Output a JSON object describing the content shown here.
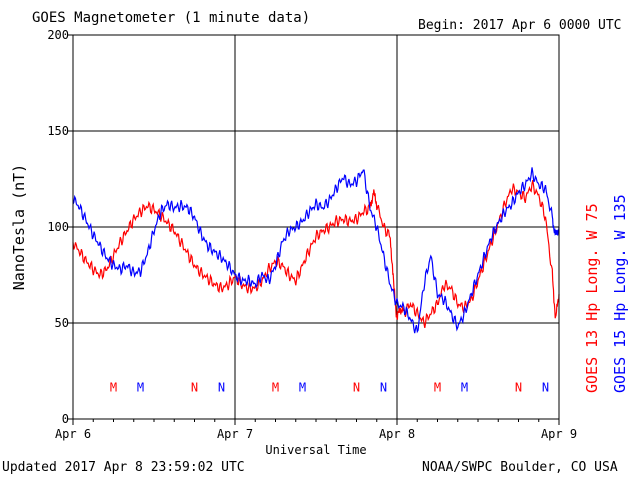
{
  "header": {
    "title": "GOES Magnetometer (1 minute data)",
    "begin": "Begin:  2017 Apr 6 0000 UTC"
  },
  "footer": {
    "updated": "Updated 2017 Apr  8 23:59:02 UTC",
    "source": "NOAA/SWPC Boulder, CO USA"
  },
  "chart_data": {
    "type": "line",
    "title": "GOES Magnetometer (1 minute data)",
    "xlabel": "Universal Time",
    "ylabel": "NanoTesla (nT)",
    "xlim": [
      0,
      72
    ],
    "ylim": [
      0,
      200
    ],
    "y_ticks": [
      0,
      50,
      100,
      150,
      200
    ],
    "x_ticks": [
      {
        "hour": 0,
        "label": "Apr 6"
      },
      {
        "hour": 24,
        "label": "Apr 7"
      },
      {
        "hour": 48,
        "label": "Apr 8"
      },
      {
        "hour": 72,
        "label": "Apr 9"
      }
    ],
    "grid": true,
    "legend": "right-vertical",
    "series": [
      {
        "name": "GOES 13 Hp  Long. W 75",
        "color": "#ff0000",
        "points": [
          [
            0,
            92
          ],
          [
            1,
            87
          ],
          [
            2,
            82
          ],
          [
            3,
            78
          ],
          [
            4,
            75
          ],
          [
            5,
            78
          ],
          [
            6,
            85
          ],
          [
            7,
            92
          ],
          [
            8,
            98
          ],
          [
            9,
            104
          ],
          [
            10,
            108
          ],
          [
            11,
            111
          ],
          [
            12,
            109
          ],
          [
            13,
            106
          ],
          [
            14,
            102
          ],
          [
            15,
            98
          ],
          [
            16,
            92
          ],
          [
            17,
            86
          ],
          [
            18,
            80
          ],
          [
            19,
            76
          ],
          [
            20,
            73
          ],
          [
            21,
            70
          ],
          [
            22,
            68
          ],
          [
            23,
            70
          ],
          [
            24,
            74
          ],
          [
            25,
            70
          ],
          [
            26,
            68
          ],
          [
            27,
            68
          ],
          [
            28,
            72
          ],
          [
            29,
            78
          ],
          [
            30,
            82
          ],
          [
            31,
            80
          ],
          [
            32,
            75
          ],
          [
            33,
            72
          ],
          [
            34,
            80
          ],
          [
            35,
            88
          ],
          [
            36,
            95
          ],
          [
            37,
            98
          ],
          [
            38,
            100
          ],
          [
            39,
            103
          ],
          [
            40,
            104
          ],
          [
            41,
            103
          ],
          [
            42,
            104
          ],
          [
            43,
            108
          ],
          [
            44,
            110
          ],
          [
            44.5,
            118
          ],
          [
            45,
            112
          ],
          [
            46,
            100
          ],
          [
            47,
            95
          ],
          [
            47.5,
            70
          ],
          [
            48,
            52
          ],
          [
            48.5,
            58
          ],
          [
            49,
            55
          ],
          [
            50,
            60
          ],
          [
            51,
            55
          ],
          [
            52,
            50
          ],
          [
            53,
            55
          ],
          [
            54,
            60
          ],
          [
            55,
            70
          ],
          [
            56,
            68
          ],
          [
            57,
            60
          ],
          [
            58,
            58
          ],
          [
            59,
            62
          ],
          [
            60,
            72
          ],
          [
            61,
            82
          ],
          [
            62,
            92
          ],
          [
            63,
            102
          ],
          [
            64,
            112
          ],
          [
            65,
            120
          ],
          [
            66,
            118
          ],
          [
            67,
            115
          ],
          [
            68,
            122
          ],
          [
            69,
            116
          ],
          [
            70,
            105
          ],
          [
            71,
            75
          ],
          [
            71.5,
            52
          ],
          [
            72,
            65
          ]
        ]
      },
      {
        "name": "GOES 15 Hp  Long. W 135",
        "color": "#0000ff",
        "points": [
          [
            0,
            115
          ],
          [
            1,
            110
          ],
          [
            2,
            103
          ],
          [
            3,
            96
          ],
          [
            4,
            90
          ],
          [
            5,
            84
          ],
          [
            6,
            80
          ],
          [
            7,
            78
          ],
          [
            8,
            80
          ],
          [
            9,
            76
          ],
          [
            10,
            77
          ],
          [
            11,
            86
          ],
          [
            12,
            98
          ],
          [
            13,
            108
          ],
          [
            14,
            112
          ],
          [
            15,
            110
          ],
          [
            16,
            111
          ],
          [
            17,
            110
          ],
          [
            18,
            105
          ],
          [
            19,
            96
          ],
          [
            20,
            90
          ],
          [
            21,
            87
          ],
          [
            22,
            84
          ],
          [
            23,
            80
          ],
          [
            24,
            75
          ],
          [
            25,
            72
          ],
          [
            26,
            72
          ],
          [
            27,
            70
          ],
          [
            28,
            75
          ],
          [
            29,
            72
          ],
          [
            30,
            80
          ],
          [
            31,
            92
          ],
          [
            32,
            98
          ],
          [
            33,
            100
          ],
          [
            34,
            103
          ],
          [
            35,
            108
          ],
          [
            36,
            112
          ],
          [
            37,
            110
          ],
          [
            38,
            114
          ],
          [
            39,
            120
          ],
          [
            40,
            126
          ],
          [
            41,
            122
          ],
          [
            42,
            124
          ],
          [
            43,
            130
          ],
          [
            44,
            110
          ],
          [
            45,
            100
          ],
          [
            46,
            85
          ],
          [
            47,
            70
          ],
          [
            48,
            60
          ],
          [
            49,
            58
          ],
          [
            50,
            52
          ],
          [
            51,
            45
          ],
          [
            52,
            70
          ],
          [
            53,
            85
          ],
          [
            54,
            65
          ],
          [
            55,
            62
          ],
          [
            56,
            55
          ],
          [
            57,
            48
          ],
          [
            58,
            55
          ],
          [
            59,
            65
          ],
          [
            60,
            75
          ],
          [
            61,
            85
          ],
          [
            62,
            95
          ],
          [
            63,
            102
          ],
          [
            64,
            108
          ],
          [
            65,
            112
          ],
          [
            66,
            118
          ],
          [
            67,
            122
          ],
          [
            68,
            128
          ],
          [
            69,
            122
          ],
          [
            70,
            120
          ],
          [
            71,
            105
          ],
          [
            71.5,
            95
          ],
          [
            72,
            100
          ]
        ]
      }
    ],
    "markers": [
      {
        "letter": "M",
        "hour": 6,
        "color": "#ff0000"
      },
      {
        "letter": "M",
        "hour": 10,
        "color": "#0000ff"
      },
      {
        "letter": "N",
        "hour": 18,
        "color": "#ff0000"
      },
      {
        "letter": "N",
        "hour": 22,
        "color": "#0000ff"
      },
      {
        "letter": "M",
        "hour": 30,
        "color": "#ff0000"
      },
      {
        "letter": "M",
        "hour": 34,
        "color": "#0000ff"
      },
      {
        "letter": "N",
        "hour": 42,
        "color": "#ff0000"
      },
      {
        "letter": "N",
        "hour": 46,
        "color": "#0000ff"
      },
      {
        "letter": "M",
        "hour": 54,
        "color": "#ff0000"
      },
      {
        "letter": "M",
        "hour": 58,
        "color": "#0000ff"
      },
      {
        "letter": "N",
        "hour": 66,
        "color": "#ff0000"
      },
      {
        "letter": "N",
        "hour": 70,
        "color": "#0000ff"
      }
    ],
    "marker_level": 17
  }
}
